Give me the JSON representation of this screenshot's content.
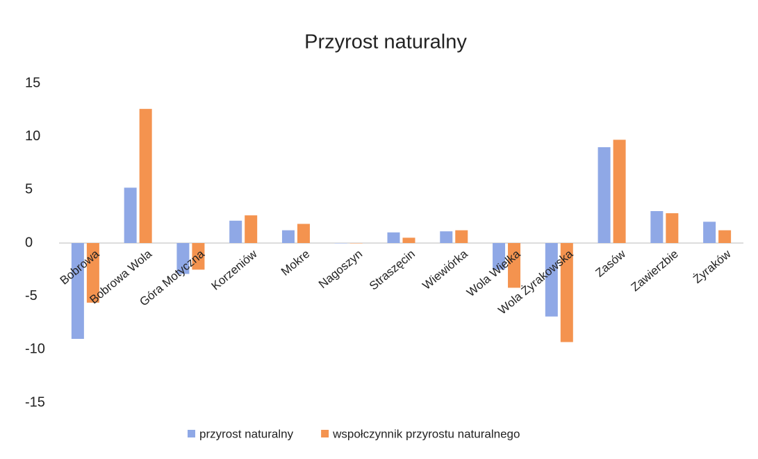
{
  "chart_data": {
    "type": "bar",
    "title": "Przyrost naturalny",
    "categories": [
      "Bobrowa",
      "Bobrowa Wola",
      "Góra Motyczna",
      "Korzeniów",
      "Mokre",
      "Nagoszyn",
      "Straszęcin",
      "Wiewiórka",
      "Wola Wielka",
      "Wola Żyrakowska",
      "Zasów",
      "Zawierzbie",
      "Żyraków"
    ],
    "series": [
      {
        "name": "przyrost naturalny",
        "color": "#8fa8e6",
        "values": [
          -9.0,
          5.2,
          -2.9,
          2.1,
          1.2,
          0,
          1.0,
          1.1,
          -2.5,
          -6.9,
          9.0,
          3.0,
          2.0
        ]
      },
      {
        "name": "wspołczynnik przyrostu naturalnego",
        "color": "#f4934f",
        "values": [
          -5.6,
          12.6,
          -2.5,
          2.6,
          1.8,
          0,
          0.5,
          1.2,
          -4.2,
          -9.3,
          9.7,
          2.8,
          1.2
        ]
      }
    ],
    "ylim": [
      -15,
      15
    ],
    "yticks": [
      15,
      10,
      5,
      0,
      -5,
      -10,
      -15
    ],
    "grid": false,
    "legend": "bottom"
  }
}
